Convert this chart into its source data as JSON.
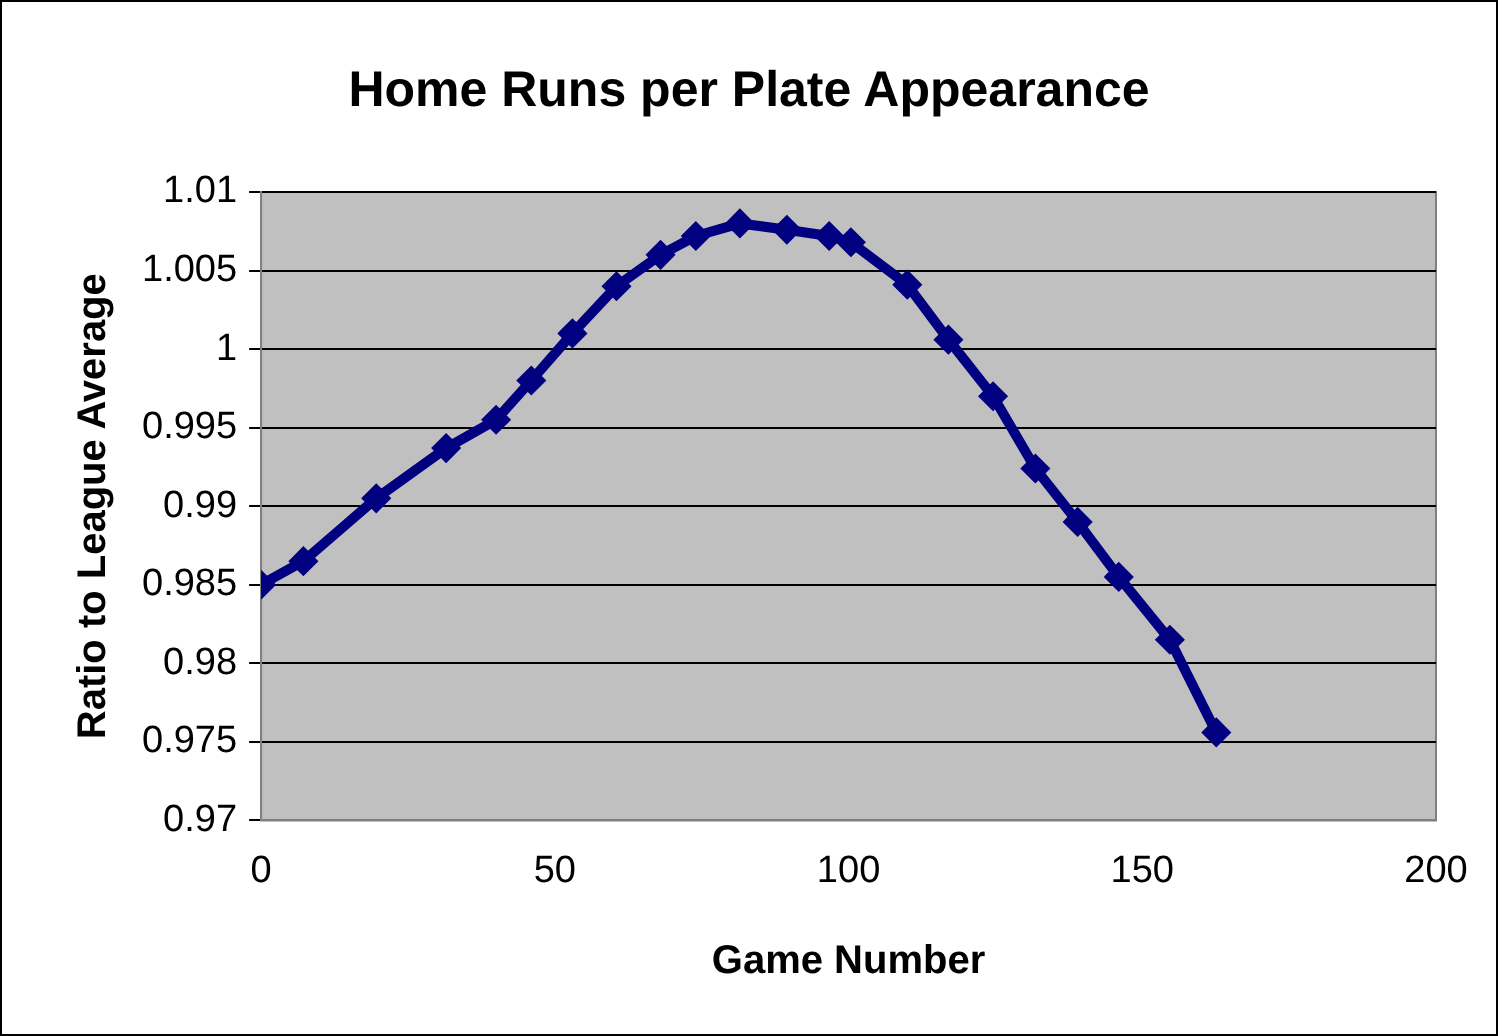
{
  "chart_data": {
    "type": "line",
    "title": "Home Runs per Plate Appearance",
    "xlabel": "Game Number",
    "ylabel": "Ratio to League Average",
    "xlim": [
      0,
      200
    ],
    "xticks": [
      0,
      50,
      100,
      150,
      200
    ],
    "ylim": [
      0.97,
      1.01
    ],
    "yticks": [
      0.97,
      0.975,
      0.98,
      0.985,
      0.99,
      0.995,
      1,
      1.005,
      1.01
    ],
    "grid": "y",
    "legend": false,
    "marker": "diamond",
    "line_style": "solid",
    "series": [
      {
        "color": "#000080",
        "x": [
          0,
          7.2,
          19.6,
          31.5,
          40,
          46,
          53,
          60.5,
          68,
          74,
          81.5,
          89.5,
          96.7,
          100.4,
          110,
          117,
          124.6,
          131.8,
          139,
          146,
          154.7,
          162.6
        ],
        "values": [
          0.985,
          0.9865,
          0.9905,
          0.9937,
          0.9955,
          0.998,
          1.001,
          1.004,
          1.006,
          1.0072,
          1.008,
          1.0076,
          1.0072,
          1.0068,
          1.0041,
          1.0006,
          0.997,
          0.9924,
          0.989,
          0.9855,
          0.9815,
          0.9756
        ]
      }
    ]
  }
}
